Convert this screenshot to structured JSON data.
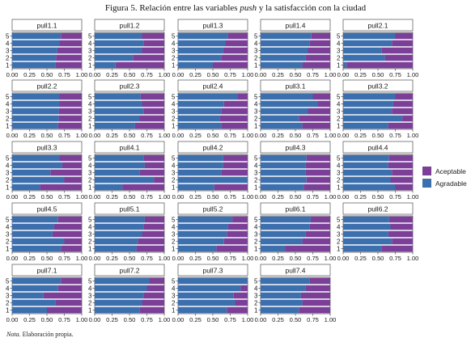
{
  "figure": {
    "title_prefix": "Figura 5. Relación entre las variables ",
    "title_italic": "push",
    "title_suffix": " y la satisfacción con la ciudad",
    "note_label": "Nota.",
    "note_text": " Elaboración propia."
  },
  "colors": {
    "Agradable": "#3c6fae",
    "Aceptable": "#7b3f98"
  },
  "chart_data": {
    "type": "bar",
    "orientation": "horizontal-stacked-proportion",
    "categories": [
      "1",
      "2",
      "3",
      "4",
      "5"
    ],
    "xlim": [
      0,
      1
    ],
    "x_ticks": [
      "0.00",
      "0.25",
      "0.50",
      "0.75",
      "1.00"
    ],
    "legend": [
      "Aceptable",
      "Agradable"
    ],
    "legend_position": "right",
    "series_note": "agradable = share of Agradable for categories 1..5 (remainder is Aceptable)",
    "panels": [
      {
        "title": "pull1.1",
        "agradable": [
          0.62,
          0.63,
          0.65,
          0.68,
          0.7
        ]
      },
      {
        "title": "pull1.2",
        "agradable": [
          0.3,
          0.55,
          0.68,
          0.7,
          0.68
        ]
      },
      {
        "title": "pull1.3",
        "agradable": [
          0.5,
          0.62,
          0.65,
          0.68,
          0.72
        ]
      },
      {
        "title": "pull1.4",
        "agradable": [
          0.6,
          0.65,
          0.68,
          0.7,
          0.73
        ]
      },
      {
        "title": "pull2.1",
        "agradable": [
          0.05,
          0.6,
          0.55,
          0.7,
          0.75
        ]
      },
      {
        "title": "pull2.2",
        "agradable": [
          0.66,
          0.67,
          0.67,
          0.68,
          0.68
        ]
      },
      {
        "title": "pull2.3",
        "agradable": [
          0.58,
          0.64,
          0.7,
          0.68,
          0.66
        ]
      },
      {
        "title": "pull2.4",
        "agradable": [
          0.62,
          0.6,
          0.62,
          0.66,
          0.85
        ]
      },
      {
        "title": "pull3.1",
        "agradable": [
          0.6,
          0.55,
          0.68,
          0.82,
          0.75
        ]
      },
      {
        "title": "pull3.2",
        "agradable": [
          0.65,
          0.85,
          0.7,
          0.72,
          0.75
        ]
      },
      {
        "title": "pull3.3",
        "agradable": [
          0.4,
          0.75,
          0.55,
          0.72,
          0.68
        ]
      },
      {
        "title": "pull4.1",
        "agradable": [
          0.4,
          0.85,
          0.65,
          0.72,
          0.7
        ]
      },
      {
        "title": "pull4.2",
        "agradable": [
          0.52,
          1.0,
          0.62,
          0.65,
          0.65
        ]
      },
      {
        "title": "pull4.3",
        "agradable": [
          0.62,
          0.66,
          0.65,
          0.65,
          0.66
        ]
      },
      {
        "title": "pull4.4",
        "agradable": [
          0.75,
          0.68,
          0.7,
          0.65,
          0.66
        ]
      },
      {
        "title": "pull4.5",
        "agradable": [
          0.7,
          0.75,
          0.58,
          0.6,
          0.66
        ]
      },
      {
        "title": "pull5.1",
        "agradable": [
          0.6,
          0.62,
          0.68,
          0.7,
          0.72
        ]
      },
      {
        "title": "pull5.2",
        "agradable": [
          0.55,
          0.66,
          0.7,
          0.72,
          0.78
        ]
      },
      {
        "title": "pull6.1",
        "agradable": [
          0.35,
          0.6,
          0.65,
          0.7,
          0.72
        ]
      },
      {
        "title": "pull6.2",
        "agradable": [
          0.55,
          0.7,
          0.65,
          0.68,
          0.66
        ]
      },
      {
        "title": "pull7.1",
        "agradable": [
          0.5,
          0.62,
          0.45,
          0.66,
          0.7
        ]
      },
      {
        "title": "pull7.2",
        "agradable": [
          0.65,
          0.68,
          0.7,
          0.75,
          0.78
        ]
      },
      {
        "title": "pull7.3",
        "agradable": [
          0.7,
          0.82,
          0.8,
          0.9,
          1.0
        ]
      },
      {
        "title": "pull7.4",
        "agradable": [
          0.55,
          0.6,
          0.58,
          0.65,
          0.7
        ]
      }
    ]
  }
}
